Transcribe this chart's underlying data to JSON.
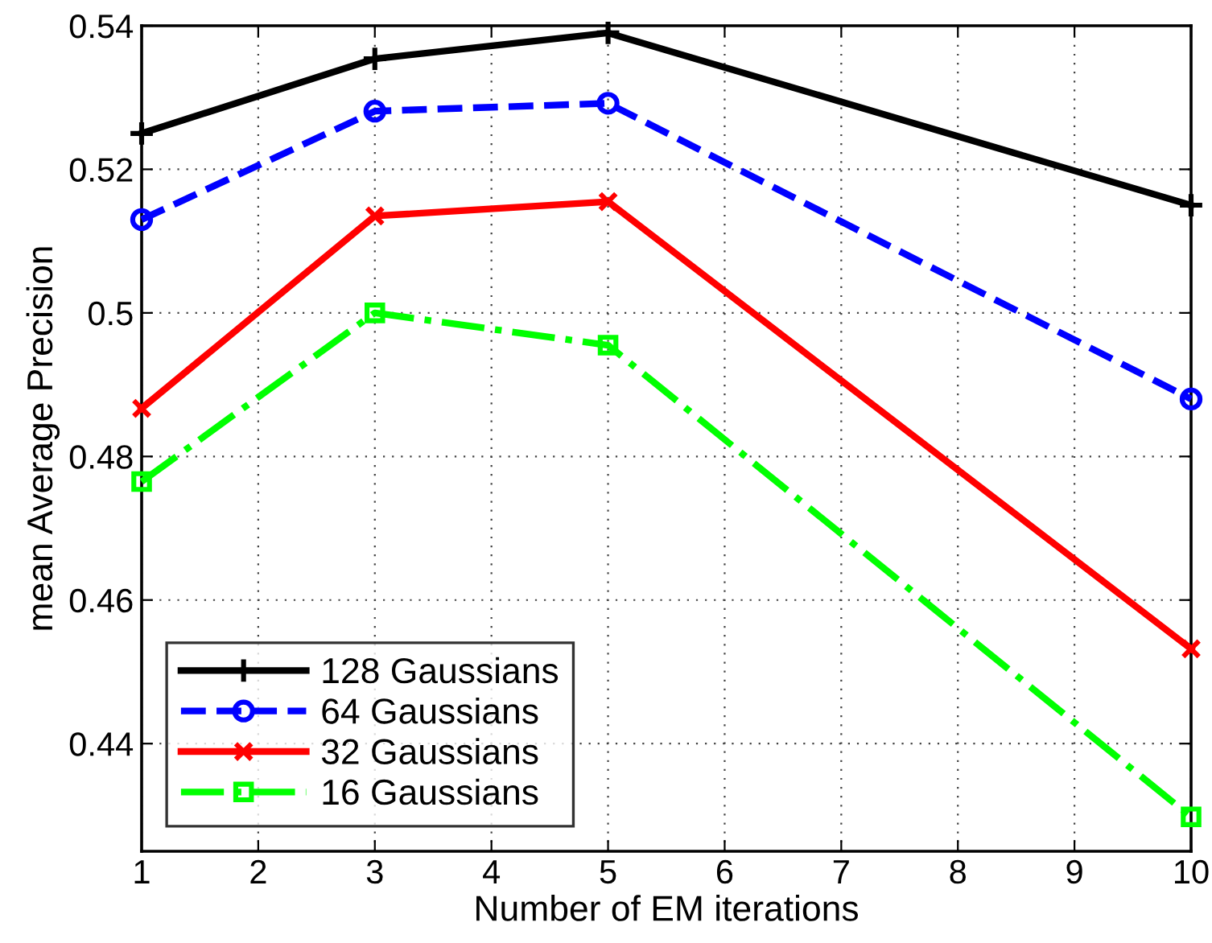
{
  "chart_data": {
    "type": "line",
    "xlabel": "Number of EM iterations",
    "ylabel": "mean Average Precision",
    "xlim": [
      1,
      10
    ],
    "xticks": [
      1,
      2,
      3,
      4,
      5,
      6,
      7,
      8,
      9,
      10
    ],
    "ylim": [
      0.425,
      0.54
    ],
    "yticks": [
      0.44,
      0.46,
      0.48,
      0.5,
      0.52,
      0.54
    ],
    "grid": true,
    "legend": "bottom left",
    "series": [
      {
        "name": "128 Gaussians",
        "color": "#000000",
        "x": [
          1,
          3,
          5,
          10
        ],
        "values": [
          0.525,
          0.5354,
          0.539,
          0.515
        ],
        "marker": "plus",
        "line_style": "solid"
      },
      {
        "name": "64 Gaussians",
        "color": "#0000ff",
        "x": [
          1,
          3,
          5,
          10
        ],
        "values": [
          0.513,
          0.5281,
          0.5292,
          0.488
        ],
        "marker": "circle",
        "line_style": "dashed"
      },
      {
        "name": "32 Gaussians",
        "color": "#ff0000",
        "x": [
          1,
          3,
          5,
          10
        ],
        "values": [
          0.4867,
          0.5135,
          0.5155,
          0.4532
        ],
        "marker": "cross",
        "line_style": "solid"
      },
      {
        "name": "16 Gaussians",
        "color": "#00ff00",
        "x": [
          1,
          3,
          5,
          10
        ],
        "values": [
          0.4765,
          0.5,
          0.4955,
          0.4298
        ],
        "marker": "square",
        "line_style": "dashdot"
      }
    ]
  }
}
